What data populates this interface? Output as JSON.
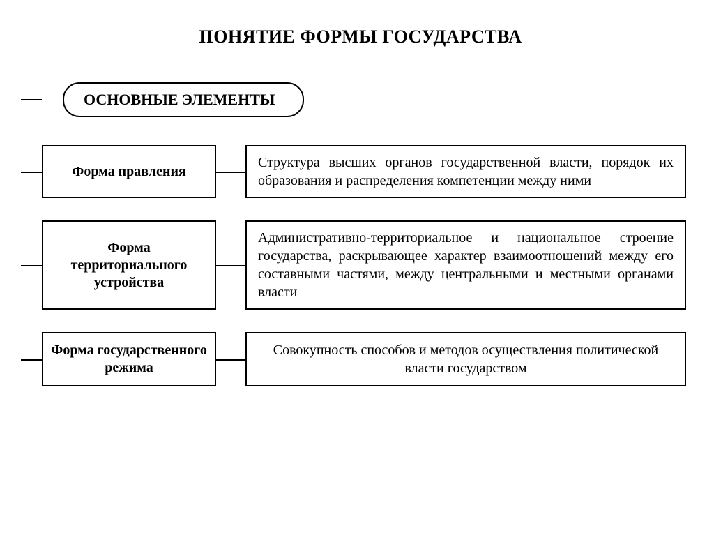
{
  "diagram": {
    "title": "ПОНЯТИЕ ФОРМЫ ГОСУДАРСТВА",
    "subtitle": "ОСНОВНЫЕ ЭЛЕМЕНТЫ",
    "colors": {
      "background": "#ffffff",
      "text": "#000000",
      "border": "#000000"
    },
    "typography": {
      "title_fontsize": 26,
      "subtitle_fontsize": 22,
      "label_fontsize": 20,
      "body_fontsize": 20,
      "font_family": "Times New Roman"
    },
    "layout": {
      "left_box_width": 250,
      "connector_width": 42,
      "row_gap": 32,
      "border_width": 2,
      "pill_radius": 24
    },
    "rows": [
      {
        "label": "Форма правления",
        "description": "Структура высших органов государственной власти, порядок их образования и распределе­ния компетенции между ними",
        "desc_align": "justify"
      },
      {
        "label": "Форма территориального устройства",
        "description": "Административно-территориальное и нацио­нальное строение государства, раскрывающее характер взаимоотношений между его состав­ными частями, между центральными и мест­ными органами власти",
        "desc_align": "justify"
      },
      {
        "label": "Форма государственного режима",
        "description": "Совокупность способов и методов осуществления политической власти государством",
        "desc_align": "center"
      }
    ]
  }
}
